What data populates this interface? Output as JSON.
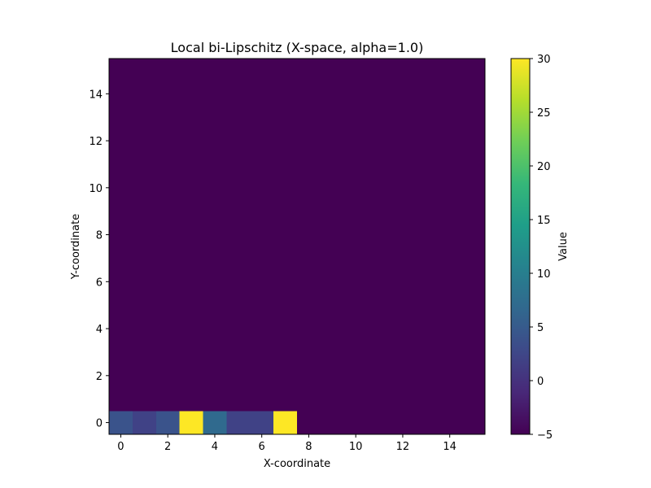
{
  "chart_data": {
    "type": "heatmap",
    "title": "Local bi-Lipschitz (X-space, alpha=1.0)",
    "xlabel": "X-coordinate",
    "ylabel": "Y-coordinate",
    "grid_size": [
      16,
      16
    ],
    "x_range": [
      -0.5,
      15.5
    ],
    "y_range": [
      -0.5,
      15.5
    ],
    "x_ticks": [
      0,
      2,
      4,
      6,
      8,
      10,
      12,
      14
    ],
    "y_ticks": [
      0,
      2,
      4,
      6,
      8,
      10,
      12,
      14
    ],
    "default_value": -5,
    "nonzero_cells": [
      {
        "x": 0,
        "y": 0,
        "value": 4
      },
      {
        "x": 1,
        "y": 0,
        "value": 2
      },
      {
        "x": 2,
        "y": 0,
        "value": 4
      },
      {
        "x": 3,
        "y": 0,
        "value": 30
      },
      {
        "x": 4,
        "y": 0,
        "value": 7
      },
      {
        "x": 5,
        "y": 0,
        "value": 2
      },
      {
        "x": 6,
        "y": 0,
        "value": 2
      },
      {
        "x": 7,
        "y": 0,
        "value": 30
      }
    ],
    "colorbar": {
      "label": "Value",
      "vmin": -5,
      "vmax": 30,
      "ticks": [
        -5,
        0,
        5,
        10,
        15,
        20,
        25,
        30
      ],
      "colormap": "viridis"
    }
  },
  "colors": {
    "viridis_stops": [
      "#440154",
      "#482878",
      "#3e4989",
      "#31688e",
      "#26828e",
      "#1f9e89",
      "#35b779",
      "#6ece58",
      "#b5de2b",
      "#fde725"
    ]
  }
}
